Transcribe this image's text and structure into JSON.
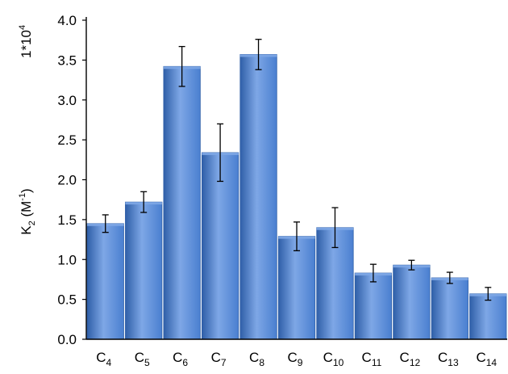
{
  "chart_data": {
    "type": "bar",
    "multiplier_label": "1*10",
    "multiplier_exp": "4",
    "ylabel_main": "K",
    "ylabel_sub": "2",
    "ylabel_unit_open": " (M",
    "ylabel_unit_sup": "-1",
    "ylabel_unit_close": ")",
    "ylim": [
      0,
      4.0
    ],
    "yticks": [
      "0.0",
      "0.5",
      "1.0",
      "1.5",
      "2.0",
      "2.5",
      "3.0",
      "3.5",
      "4.0"
    ],
    "categories": [
      {
        "base": "C",
        "sub": "4"
      },
      {
        "base": "C",
        "sub": "5"
      },
      {
        "base": "C",
        "sub": "6"
      },
      {
        "base": "C",
        "sub": "7"
      },
      {
        "base": "C",
        "sub": "8"
      },
      {
        "base": "C",
        "sub": "9"
      },
      {
        "base": "C",
        "sub": "10"
      },
      {
        "base": "C",
        "sub": "11"
      },
      {
        "base": "C",
        "sub": "12"
      },
      {
        "base": "C",
        "sub": "13"
      },
      {
        "base": "C",
        "sub": "14"
      }
    ],
    "values": [
      1.45,
      1.72,
      3.42,
      2.34,
      3.57,
      1.29,
      1.4,
      0.83,
      0.93,
      0.77,
      0.57
    ],
    "errors": [
      0.11,
      0.13,
      0.25,
      0.36,
      0.19,
      0.18,
      0.25,
      0.11,
      0.06,
      0.07,
      0.08
    ],
    "bar_color": "#4a7fd0",
    "bar_color_light": "#7ea7e6",
    "bar_color_dark": "#2f5fa8",
    "grid": false
  }
}
